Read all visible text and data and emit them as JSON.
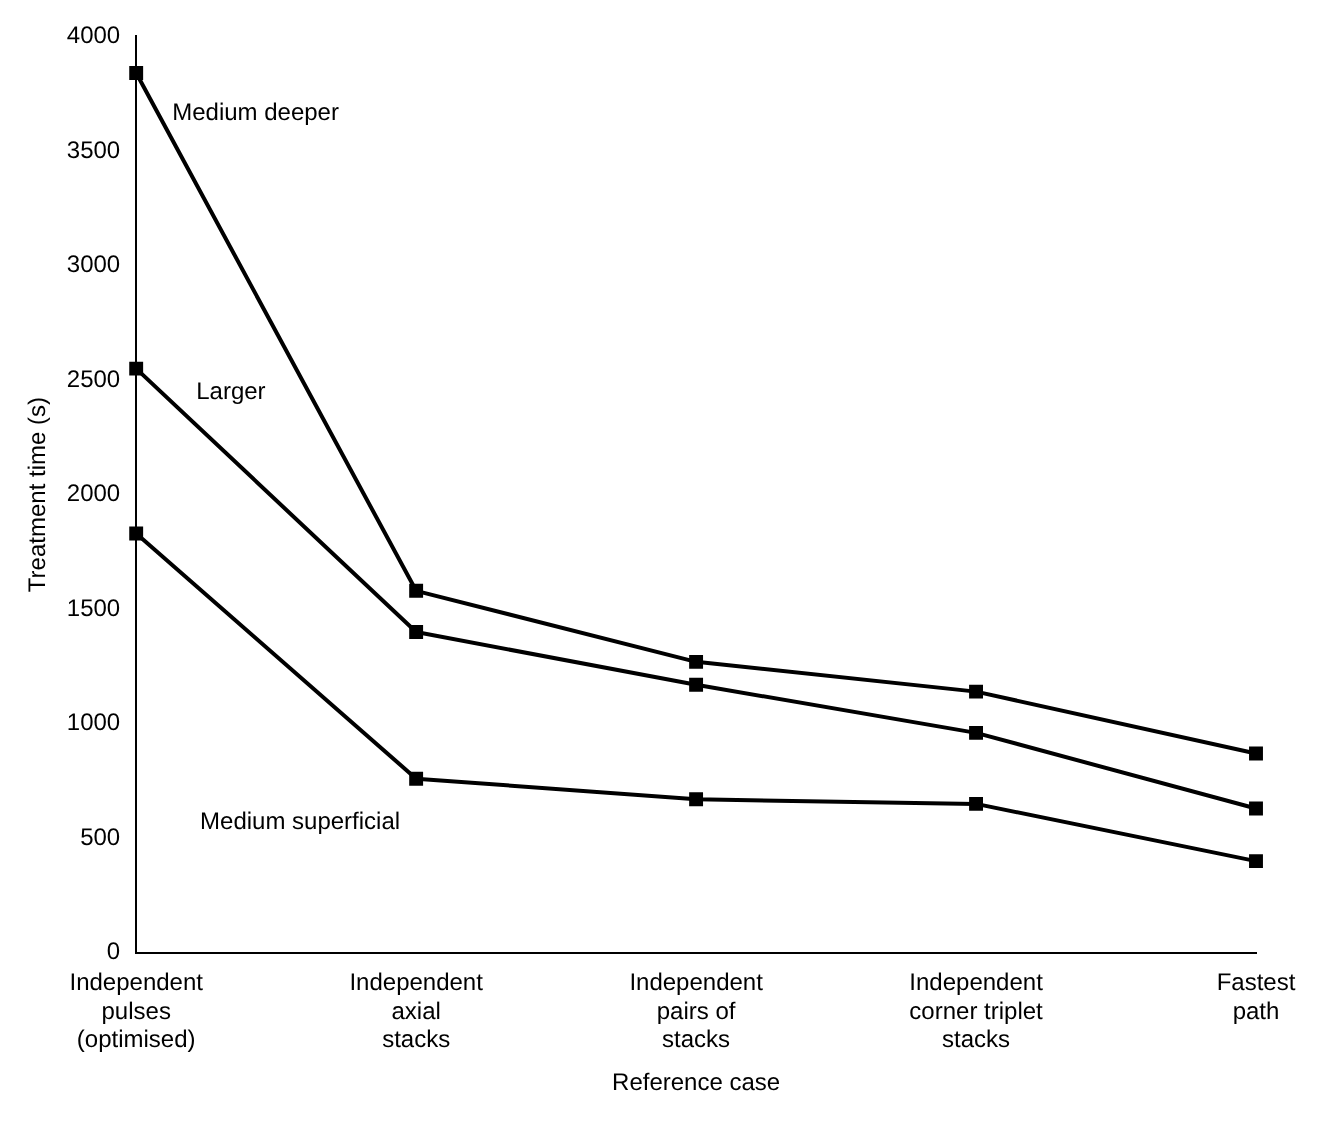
{
  "chart_data": {
    "type": "line",
    "xlabel": "Reference case",
    "ylabel": "Treatment time (s)",
    "categories": [
      "Independent\npulses\n(optimised)",
      "Independent\naxial\nstacks",
      "Independent\npairs of\nstacks",
      "Independent\ncorner triplet\nstacks",
      "Fastest\npath"
    ],
    "series": [
      {
        "name": "Medium deeper",
        "color": "#000000",
        "values": [
          3840,
          1580,
          1270,
          1140,
          870
        ]
      },
      {
        "name": "Larger",
        "color": "#000000",
        "values": [
          2550,
          1400,
          1170,
          960,
          630
        ]
      },
      {
        "name": "Medium superficial",
        "color": "#000000",
        "values": [
          1830,
          760,
          670,
          650,
          400
        ]
      }
    ],
    "ylim": [
      0,
      4000
    ],
    "yticks": [
      0,
      500,
      1000,
      1500,
      2000,
      2500,
      3000,
      3500,
      4000
    ],
    "grid": false,
    "legend": false,
    "marker": "square",
    "line_style": "solid"
  }
}
